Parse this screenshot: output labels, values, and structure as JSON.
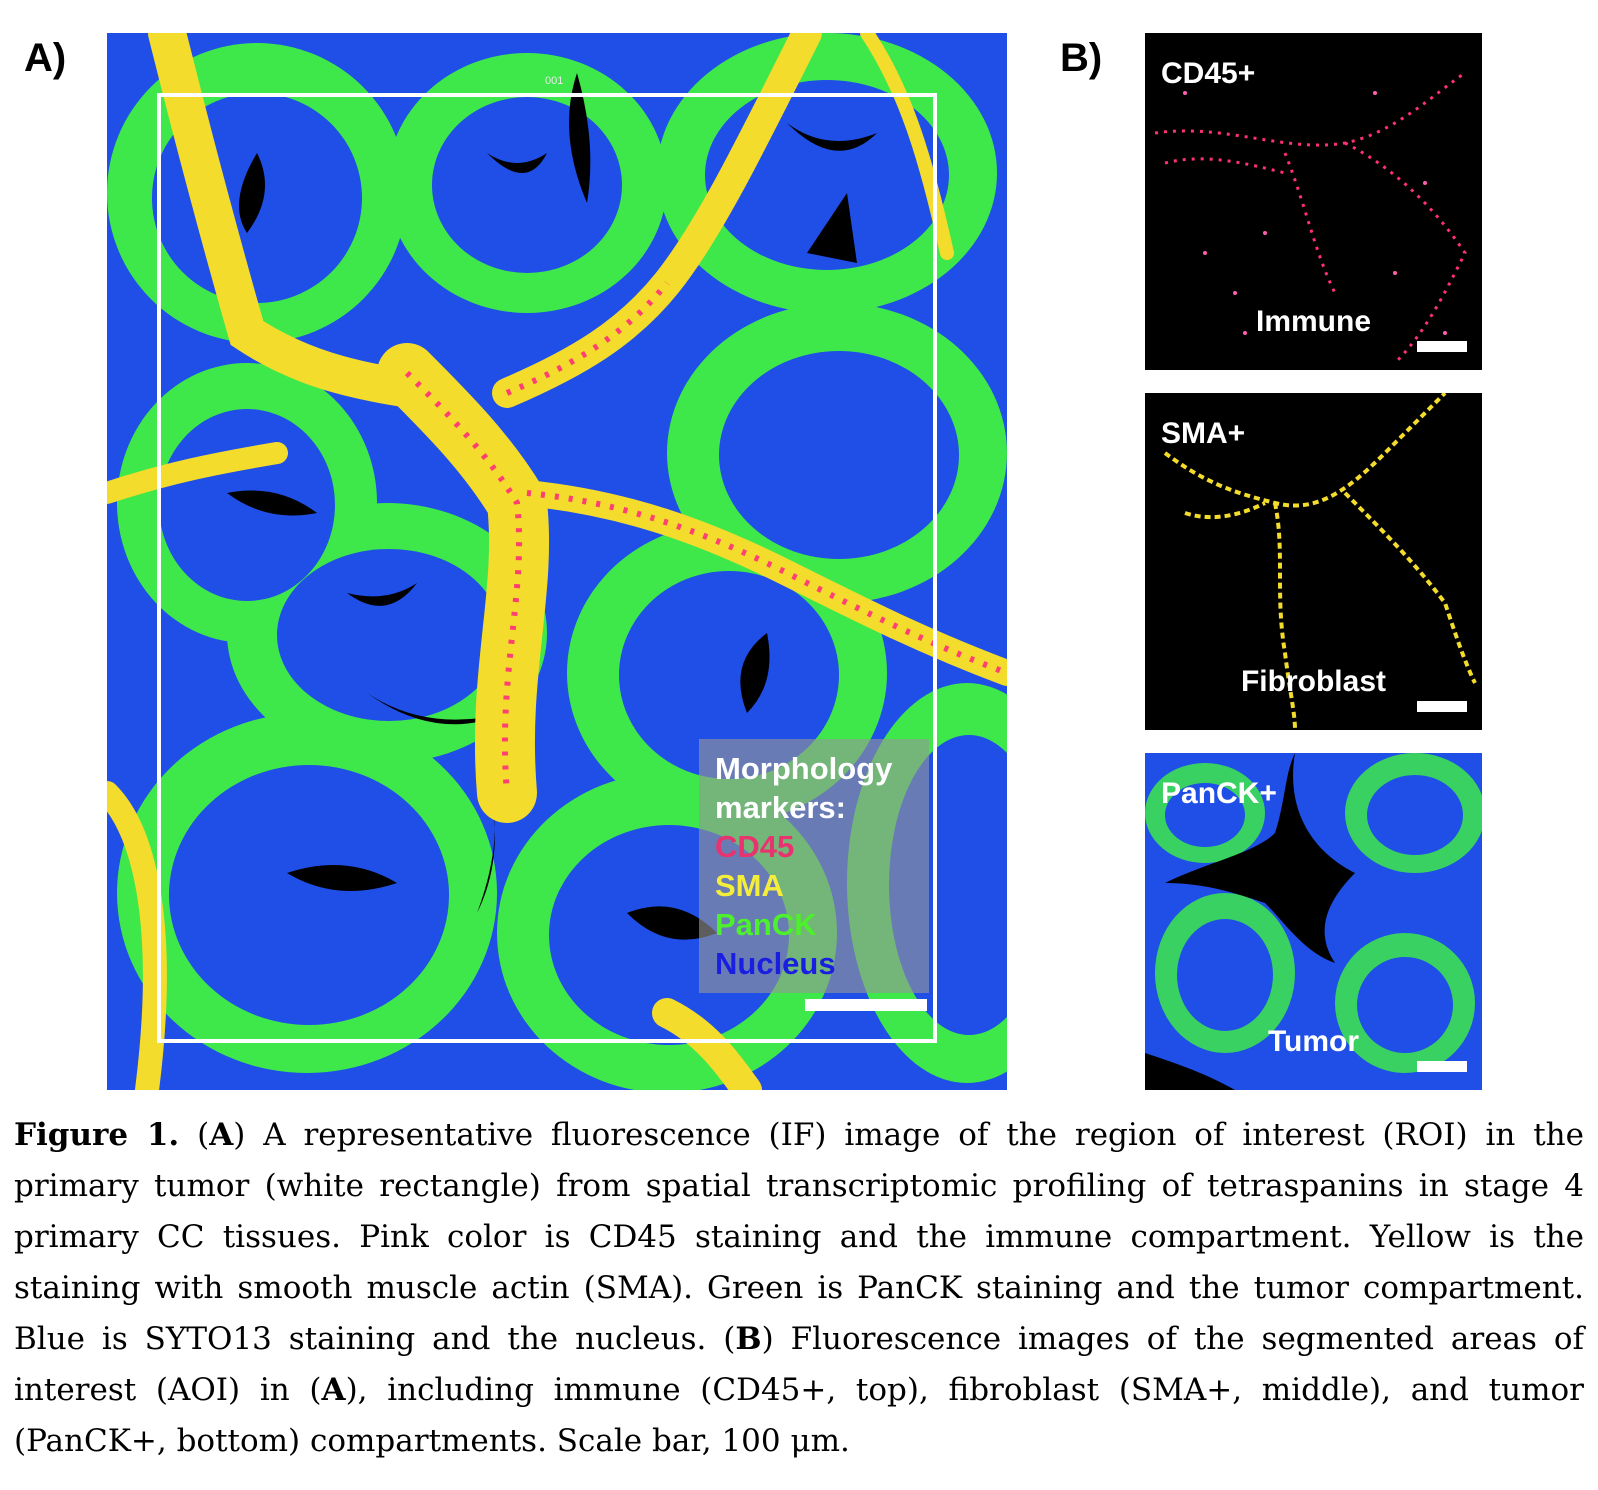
{
  "panel_a": {
    "label": "A)",
    "roi_id": "001",
    "legend": {
      "title": "Morphology markers:",
      "entries": [
        {
          "label": "CD45",
          "color": "#e8336f"
        },
        {
          "label": "SMA",
          "color": "#f4ee3a"
        },
        {
          "label": "PanCK",
          "color": "#4cf02c"
        },
        {
          "label": "Nucleus",
          "color": "#1a1ee0"
        }
      ]
    }
  },
  "panel_b": {
    "label": "B)",
    "subpanels": [
      {
        "marker": "CD45+",
        "name": "Immune"
      },
      {
        "marker": "SMA+",
        "name": "Fibroblast"
      },
      {
        "marker": "PanCK+",
        "name": "Tumor"
      }
    ]
  },
  "caption": {
    "figure_label": "Figure 1.",
    "p1": " (",
    "ref_a": "A",
    "p2": ") A representative fluorescence (IF) image of the region of interest (ROI) in the primary tumor (white rectangle) from spatial transcriptomic profiling of tetraspanins in stage 4 primary CC tissues. Pink color is CD45 staining and the immune compartment. Yellow is the staining with smooth muscle actin (SMA). Green is PanCK staining and the tumor compartment. Blue is SYTO13 staining and the nucleus. (",
    "ref_b": "B",
    "p3": ") Fluorescence images of the segmented areas of interest (AOI) in (",
    "ref_a2": "A",
    "p4": "), including immune (CD45+, top), fibroblast (SMA+, middle), and tumor (PanCK+, bottom) compartments. Scale bar, 100 μm."
  },
  "colors": {
    "tumor_green": "#3ee84a",
    "nucleus_blue": "#1f4fe6",
    "stroma_yellow": "#f3dc2c",
    "immune_pink": "#ff2f7a",
    "background": "#000000"
  }
}
